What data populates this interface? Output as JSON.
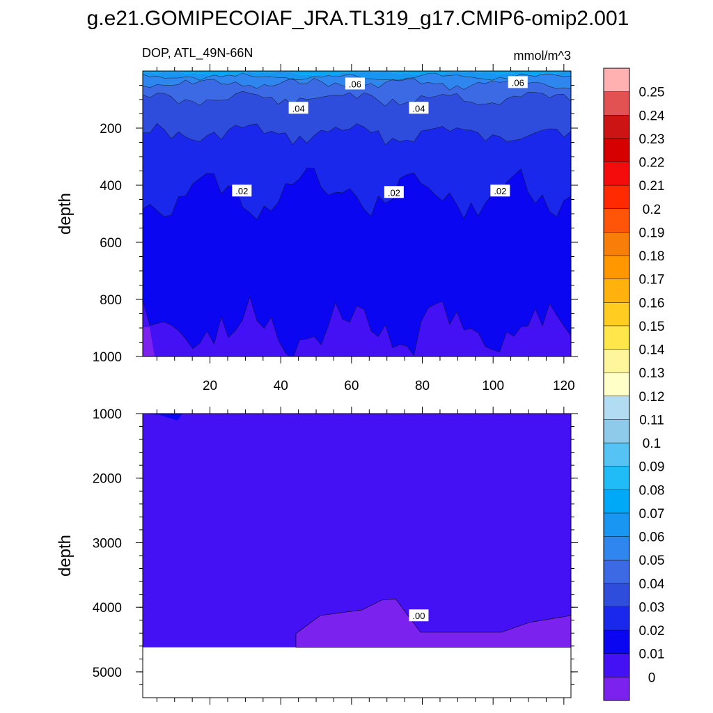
{
  "chart_data": {
    "type": "contour",
    "title": "g.e21.GOMIPECOIAF_JRA.TL319_g17.CMIP6-omip2.001",
    "variable": "DOP, ATL_49N-66N",
    "units": "mmol/m^3",
    "x_ticks": [
      "20",
      "40",
      "60",
      "80",
      "100",
      "120"
    ],
    "xlim": [
      1,
      122
    ],
    "panels": [
      {
        "name": "upper",
        "ylabel": "depth",
        "ylim": [
          0,
          1000
        ],
        "y_ticks": [
          "200",
          "400",
          "600",
          "800",
          "1000"
        ],
        "contour_labels": [
          {
            "text": ".06",
            "x": 61,
            "depth": 45
          },
          {
            "text": ".06",
            "x": 107,
            "depth": 40
          },
          {
            "text": ".04",
            "x": 45,
            "depth": 130
          },
          {
            "text": ".04",
            "x": 79,
            "depth": 130
          },
          {
            "text": ".02",
            "x": 29,
            "depth": 420
          },
          {
            "text": ".02",
            "x": 72,
            "depth": 425
          },
          {
            "text": ".02",
            "x": 102,
            "depth": 420
          }
        ]
      },
      {
        "name": "lower",
        "ylabel": "depth",
        "ylim": [
          1000,
          5400
        ],
        "y_ticks": [
          "1000",
          "2000",
          "3000",
          "4000",
          "5000"
        ],
        "bottom_depth": 4620,
        "contour_labels": [
          {
            "text": ".00",
            "x": 79,
            "depth": 4130
          }
        ]
      }
    ],
    "colorbar": {
      "levels": [
        "0",
        "0.01",
        "0.02",
        "0.03",
        "0.04",
        "0.05",
        "0.06",
        "0.07",
        "0.08",
        "0.09",
        "0.1",
        "0.11",
        "0.12",
        "0.13",
        "0.14",
        "0.15",
        "0.16",
        "0.17",
        "0.18",
        "0.19",
        "0.2",
        "0.21",
        "0.22",
        "0.23",
        "0.24",
        "0.25"
      ],
      "colors": [
        "#7b22ee",
        "#4410f4",
        "#0a06f2",
        "#1a28ec",
        "#2e4ddc",
        "#3b6ae4",
        "#2e86ee",
        "#1896f2",
        "#00a8f8",
        "#1fbcf8",
        "#55c4f4",
        "#8ecbea",
        "#b2dcf2",
        "#ffffc8",
        "#fff59a",
        "#ffe64a",
        "#ffcc22",
        "#ffb20e",
        "#ff9800",
        "#f87e0a",
        "#ff5508",
        "#ff2a00",
        "#f40c0c",
        "#d60000",
        "#cc1414",
        "#e25252",
        "#ffb0b0"
      ]
    },
    "fills": {
      "c0": "#7b22ee",
      "c1": "#4410f4",
      "c2": "#0a06f2",
      "c3": "#1a28ec",
      "c4": "#2e4ddc",
      "c5": "#3b6ae4",
      "c6": "#2e86ee",
      "c7": "#1896f2",
      "c8": "#00a8f8"
    }
  }
}
